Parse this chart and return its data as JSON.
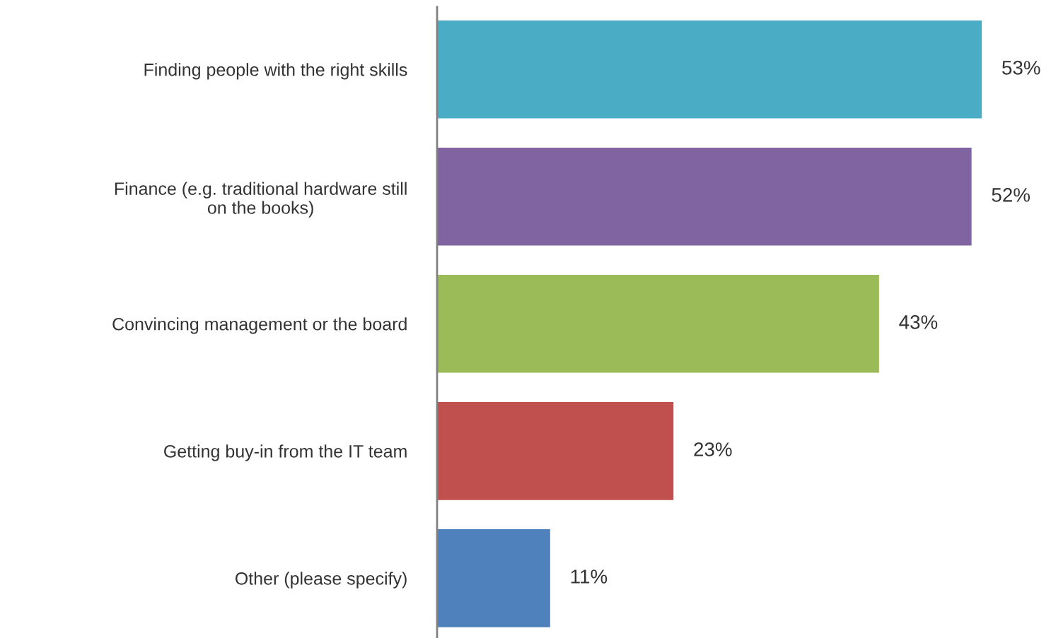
{
  "chart_data": {
    "type": "bar",
    "orientation": "horizontal",
    "categories": [
      "Finding people with the right skills",
      "Finance (e.g. traditional hardware still\non the books)",
      "Convincing management or the board",
      "Getting buy-in from the IT team",
      "Other (please specify)"
    ],
    "values": [
      53,
      52,
      43,
      23,
      11
    ],
    "colors": [
      "#4bacc6",
      "#8064a2",
      "#9bbb59",
      "#c0504d",
      "#4f81bd"
    ],
    "value_labels": [
      "53%",
      "52%",
      "43%",
      "23%",
      "11%"
    ],
    "grid": false,
    "legend": false
  }
}
